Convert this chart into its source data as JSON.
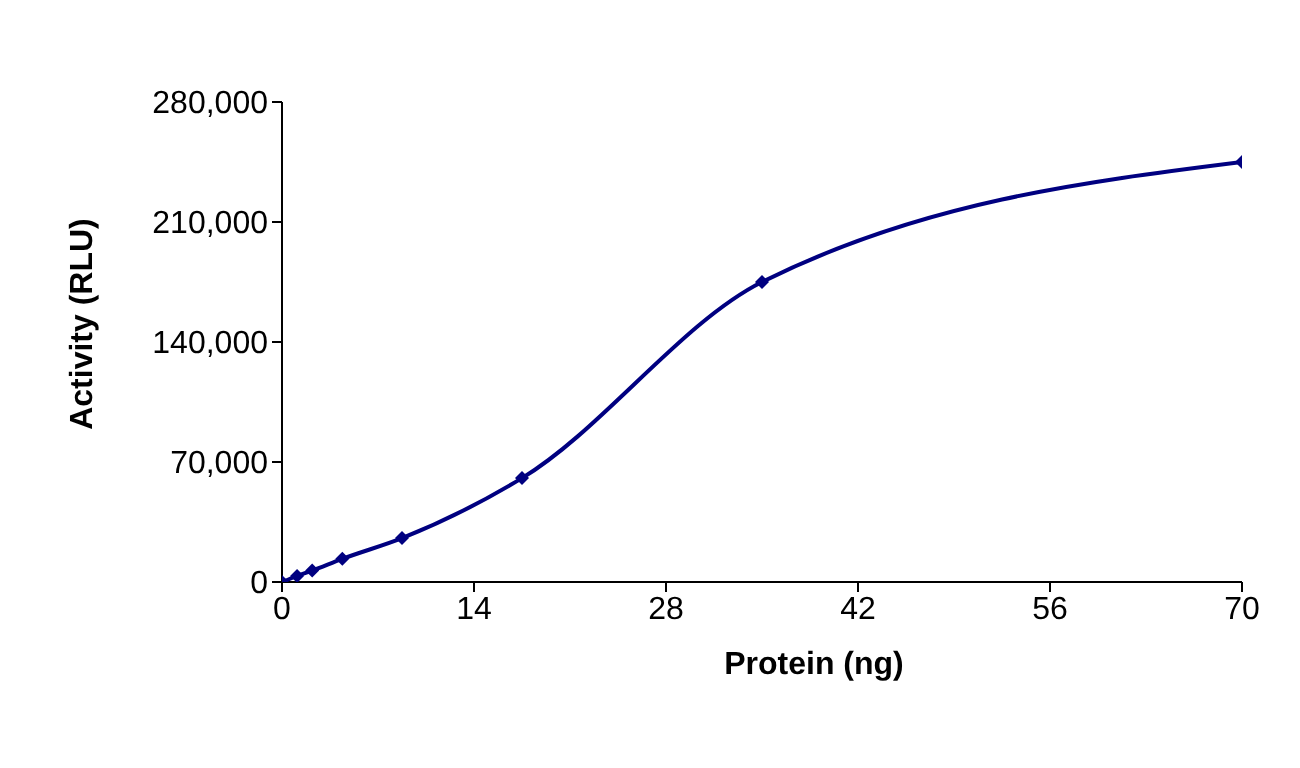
{
  "chart_data": {
    "type": "line",
    "xlabel": "Protein (ng)",
    "ylabel": "Activity (RLU)",
    "x": [
      0,
      1.1,
      2.2,
      4.4,
      8.75,
      17.5,
      35,
      70
    ],
    "series": [
      {
        "color": "#000080",
        "values": [
          0,
          3500,
          6700,
          13500,
          25600,
          60600,
          175000,
          245000
        ]
      }
    ],
    "xlim": [
      0,
      70
    ],
    "xticks": [
      0,
      14,
      28,
      42,
      56,
      70
    ],
    "ylim": [
      0,
      280000
    ],
    "yticks": [
      {
        "value": 0,
        "label": "0"
      },
      {
        "value": 70000,
        "label": "70,000"
      },
      {
        "value": 140000,
        "label": "140,000"
      },
      {
        "value": 210000,
        "label": "210,000"
      },
      {
        "value": 280000,
        "label": "280,000"
      }
    ],
    "grid": false,
    "legend": false,
    "marker": "diamond",
    "line_style": "solid"
  }
}
